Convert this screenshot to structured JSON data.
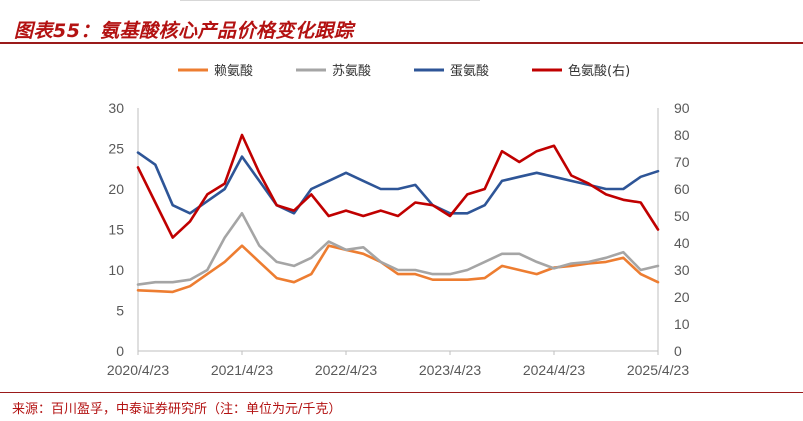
{
  "header": {
    "title": "图表55：氨基酸核心产品价格变化跟踪"
  },
  "footer": {
    "source": "来源：百川盈孚，中泰证券研究所（注：单位为元/千克）"
  },
  "chart_data": {
    "type": "line",
    "x": [
      "2020/4/23",
      "2020/6/23",
      "2020/8/23",
      "2020/10/23",
      "2020/12/23",
      "2021/2/23",
      "2021/4/23",
      "2021/6/23",
      "2021/8/23",
      "2021/10/23",
      "2021/12/23",
      "2022/2/23",
      "2022/4/23",
      "2022/6/23",
      "2022/8/23",
      "2022/10/23",
      "2022/12/23",
      "2023/2/23",
      "2023/4/23",
      "2023/6/23",
      "2023/8/23",
      "2023/10/23",
      "2023/12/23",
      "2024/2/23",
      "2024/4/23",
      "2024/6/23",
      "2024/8/23",
      "2024/10/23",
      "2024/12/23",
      "2025/2/23",
      "2025/4/23"
    ],
    "xticks": [
      "2020/4/23",
      "2021/4/23",
      "2022/4/23",
      "2023/4/23",
      "2024/4/23",
      "2025/4/23"
    ],
    "y_left": {
      "ticks": [
        0,
        5,
        10,
        15,
        20,
        25,
        30
      ],
      "lim": [
        0,
        30
      ]
    },
    "y_right": {
      "ticks": [
        0,
        10,
        20,
        30,
        40,
        50,
        60,
        70,
        80,
        90
      ],
      "lim": [
        0,
        90
      ]
    },
    "legend_position": "top",
    "series": [
      {
        "name": "赖氨酸",
        "axis": "left",
        "color": "#ed7d31",
        "values": [
          7.5,
          7.4,
          7.3,
          8.0,
          9.5,
          11.0,
          13.0,
          11.0,
          9.0,
          8.5,
          9.5,
          13.0,
          12.5,
          12.0,
          11.0,
          9.5,
          9.5,
          8.8,
          8.8,
          8.8,
          9.0,
          10.5,
          10.0,
          9.5,
          10.3,
          10.5,
          10.8,
          11.0,
          11.5,
          9.5,
          8.5
        ]
      },
      {
        "name": "苏氨酸",
        "axis": "left",
        "color": "#a5a5a5",
        "values": [
          8.2,
          8.5,
          8.5,
          8.8,
          10.0,
          14.0,
          17.0,
          13.0,
          11.0,
          10.5,
          11.5,
          13.5,
          12.5,
          12.8,
          11.0,
          10.0,
          10.0,
          9.5,
          9.5,
          10.0,
          11.0,
          12.0,
          12.0,
          11.0,
          10.2,
          10.8,
          11.0,
          11.5,
          12.2,
          10.0,
          10.5
        ]
      },
      {
        "name": "蛋氨酸",
        "axis": "left",
        "color": "#2e5597",
        "values": [
          24.5,
          23.0,
          18.0,
          17.0,
          18.5,
          20.0,
          24.0,
          21.0,
          18.0,
          17.0,
          20.0,
          21.0,
          22.0,
          21.0,
          20.0,
          20.0,
          20.5,
          18.0,
          17.0,
          17.0,
          18.0,
          21.0,
          21.5,
          22.0,
          21.5,
          21.0,
          20.5,
          20.0,
          20.0,
          21.5,
          22.2
        ]
      },
      {
        "name": "色氨酸(右)",
        "axis": "right",
        "color": "#c00000",
        "values": [
          68,
          55,
          42,
          48,
          58,
          62,
          80,
          66,
          54,
          52,
          58,
          50,
          52,
          50,
          52,
          50,
          55,
          54,
          50,
          58,
          60,
          74,
          70,
          74,
          76,
          65,
          62,
          58,
          56,
          55,
          45
        ]
      }
    ]
  }
}
